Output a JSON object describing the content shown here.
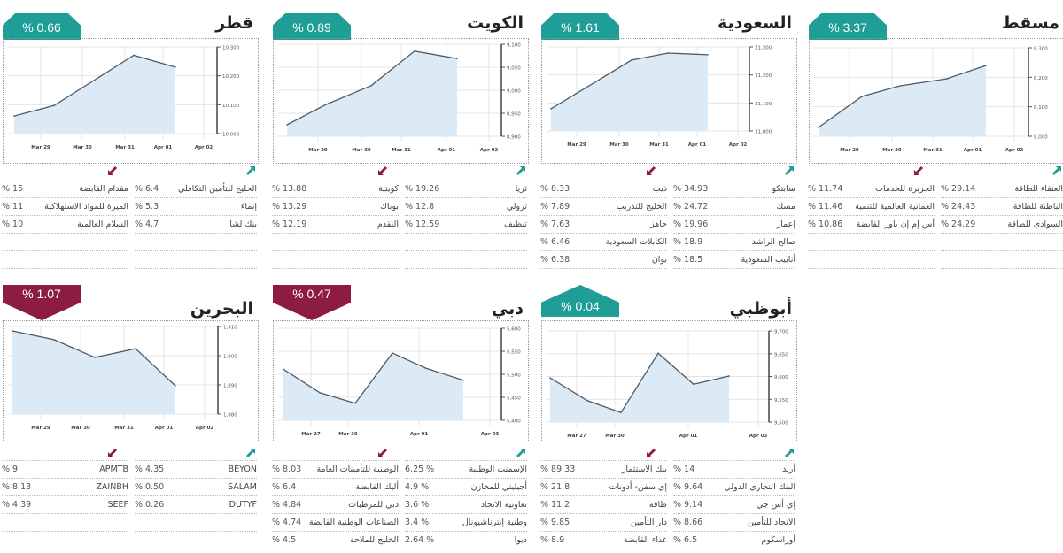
{
  "percent_sign": "%",
  "colors": {
    "gain": "#1f9e98",
    "loss": "#8c1d40",
    "area": "#dceaf6",
    "line": "#4d5b68"
  },
  "icons": {
    "gainers": "arrow-up-right-icon",
    "losers": "arrow-down-left-icon"
  },
  "markets": [
    {
      "name": "قطر",
      "change": "% 0.66",
      "direction": "up",
      "gainers": [
        {
          "name": "الخليج للتأمين التكافلي",
          "value": "% 6.4"
        },
        {
          "name": "إنماء",
          "value": "% 5.3"
        },
        {
          "name": "بنك لشا",
          "value": "% 4.7"
        }
      ],
      "losers": [
        {
          "name": "مقدام القابضة",
          "value": "% 15"
        },
        {
          "name": "الميرة للمواد الاستهلاكية",
          "value": "% 11"
        },
        {
          "name": "السلام العالمية",
          "value": "% 10"
        }
      ]
    },
    {
      "name": "الكويت",
      "change": "% 0.89",
      "direction": "up",
      "gainers": [
        {
          "name": "ثريا",
          "value": "% 19.26"
        },
        {
          "name": "ترولي",
          "value": "% 12.8"
        },
        {
          "name": "تنظيف",
          "value": "% 12.59"
        }
      ],
      "losers": [
        {
          "name": "كويتية",
          "value": "% 13.88"
        },
        {
          "name": "بوباك",
          "value": "% 13.29"
        },
        {
          "name": "التقدم",
          "value": "% 12.19"
        }
      ]
    },
    {
      "name": "السعودية",
      "change": "% 1.61",
      "direction": "up",
      "gainers": [
        {
          "name": "سابتكو",
          "value": "% 34.93"
        },
        {
          "name": "مسك",
          "value": "% 24.72"
        },
        {
          "name": "إعمار",
          "value": "% 19.96"
        },
        {
          "name": "صالح الراشد",
          "value": "% 18.9"
        },
        {
          "name": "أنابيب السعودية",
          "value": "% 18.5"
        }
      ],
      "losers": [
        {
          "name": "ذيب",
          "value": "% 8.33"
        },
        {
          "name": "الخليج للتدريب",
          "value": "% 7.89"
        },
        {
          "name": "جاهز",
          "value": "% 7.63"
        },
        {
          "name": "الكابلات السعودية",
          "value": "% 6.46"
        },
        {
          "name": "بوان",
          "value": "% 6.38"
        }
      ]
    },
    {
      "name": "مسقط",
      "change": "% 3.37",
      "direction": "up",
      "gainers": [
        {
          "name": "العنقاء للطاقة",
          "value": "% 29.14"
        },
        {
          "name": "الباطنة للطاقة",
          "value": "% 24.43"
        },
        {
          "name": "السوادي للطاقة",
          "value": "% 24.29"
        }
      ],
      "losers": [
        {
          "name": "الجزيرة للخدمات",
          "value": "% 11.74"
        },
        {
          "name": "العمانية العالمية للتنمية",
          "value": "% 11.46"
        },
        {
          "name": "أس إم إن باور القابضة",
          "value": "% 10.86"
        }
      ]
    },
    {
      "name": "البحرين",
      "change": "% 1.07",
      "direction": "down",
      "gainers": [
        {
          "name": "BEYON",
          "value": "% 4.35"
        },
        {
          "name": "SALAM",
          "value": "% 0.50"
        },
        {
          "name": "DUTYF",
          "value": "% 0.26"
        }
      ],
      "losers": [
        {
          "name": "APMTB",
          "value": "% 9"
        },
        {
          "name": "ZAINBH",
          "value": "% 8.13"
        },
        {
          "name": "SEEF",
          "value": "% 4.39"
        }
      ]
    },
    {
      "name": "دبي",
      "change": "% 0.47",
      "direction": "down",
      "gainers": [
        {
          "name": "الإسمنت الوطنية",
          "value": "6.25 %"
        },
        {
          "name": "أجيليتي للمخازن",
          "value": "4.9 %"
        },
        {
          "name": "تعاونية الاتحاد",
          "value": "3.6 %"
        },
        {
          "name": "وطنية إنترناشيونال",
          "value": "3.4 %"
        },
        {
          "name": "ديوا",
          "value": "2.64 %"
        }
      ],
      "losers": [
        {
          "name": "الوطنية للتأمينات العامة",
          "value": "% 8.03"
        },
        {
          "name": "أليك القابضة",
          "value": "% 6.4"
        },
        {
          "name": "دبي للمرطبات",
          "value": "% 4.84"
        },
        {
          "name": "الصناعات الوطنية القابضة",
          "value": "% 4.74"
        },
        {
          "name": "الخليج للملاحة",
          "value": "% 4.5"
        }
      ]
    },
    {
      "name": "أبوظبي",
      "change": "% 0.04",
      "direction": "up",
      "gainers": [
        {
          "name": "أريد",
          "value": "% 14"
        },
        {
          "name": "البنك التجاري الدولي",
          "value": "% 9.64"
        },
        {
          "name": "إي أس جي",
          "value": "% 9.14"
        },
        {
          "name": "الاتحاد للتأمين",
          "value": "% 8.66"
        },
        {
          "name": "أوراسكوم",
          "value": "% 6.5"
        }
      ],
      "losers": [
        {
          "name": "بنك الاستثمار",
          "value": "% 89.33"
        },
        {
          "name": "إي سفن- أدونات",
          "value": "% 21.8"
        },
        {
          "name": "طاقة",
          "value": "% 11.2"
        },
        {
          "name": "دار التأمين",
          "value": "% 9.85"
        },
        {
          "name": "غذاء القابضة",
          "value": "% 8.9"
        }
      ]
    }
  ],
  "chart_data": [
    {
      "type": "area",
      "market": "قطر",
      "xticks": [
        "Mar 29",
        "Mar 30",
        "Mar 31",
        "Apr 01",
        "Apr 02"
      ],
      "yticks": [
        "10,000",
        "10,100",
        "10,200",
        "10,300"
      ],
      "ylim": [
        10000,
        10300
      ],
      "values": [
        10061,
        10097,
        10271,
        10230
      ],
      "grid": true
    },
    {
      "type": "area",
      "market": "الكويت",
      "xticks": [
        "Mar 29",
        "Mar 30",
        "Mar 31",
        "Apr 01",
        "Apr 02"
      ],
      "yticks": [
        "8,900",
        "8,950",
        "9,000",
        "9,050",
        "9,100"
      ],
      "ylim": [
        8900,
        9100
      ],
      "values": [
        8925,
        8969,
        9010,
        9085,
        9069
      ],
      "grid": true
    },
    {
      "type": "area",
      "market": "السعودية",
      "xticks": [
        "Mar 29",
        "Mar 30",
        "Mar 31",
        "Apr 01",
        "Apr 02"
      ],
      "yticks": [
        "11,000",
        "11,100",
        "11,200",
        "11,300"
      ],
      "ylim": [
        11000,
        11300
      ],
      "values": [
        11079,
        11253,
        11278,
        11272
      ],
      "grid": true
    },
    {
      "type": "area",
      "market": "مسقط",
      "xticks": [
        "Mar 29",
        "Mar 30",
        "Mar 31",
        "Apr 01",
        "Apr 02"
      ],
      "yticks": [
        "8,000",
        "8,100",
        "8,200",
        "8,300"
      ],
      "ylim": [
        8000,
        8300
      ],
      "values": [
        8030,
        8135,
        8171,
        8195,
        8240
      ],
      "grid": true
    },
    {
      "type": "area",
      "market": "البحرين",
      "xticks": [
        "Mar 29",
        "Mar 30",
        "Mar 31",
        "Apr 01",
        "Apr 02"
      ],
      "yticks": [
        "1,880",
        "1,890",
        "1,900",
        "1,910"
      ],
      "ylim": [
        1880,
        1910
      ],
      "values": [
        1908.5,
        1905.5,
        1899.4,
        1902.4,
        1889.7
      ],
      "grid": true
    },
    {
      "type": "area",
      "market": "دبي",
      "xticks": [
        "Mar 27",
        "Mar 30",
        "Apr 01",
        "Apr 03"
      ],
      "yticks": [
        "5,400",
        "5,450",
        "5,500",
        "5,550",
        "5,600"
      ],
      "ylim": [
        5400,
        5600
      ],
      "values": [
        5511,
        5460,
        5437,
        5546,
        5513,
        5487
      ],
      "grid": true
    },
    {
      "type": "area",
      "market": "أبوظبي",
      "xticks": [
        "Mar 27",
        "Mar 30",
        "Apr 01",
        "Apr 03"
      ],
      "yticks": [
        "9,500",
        "9,550",
        "9,600",
        "9,650",
        "9,700"
      ],
      "ylim": [
        9500,
        9700
      ],
      "values": [
        9597,
        9547,
        9521,
        9651,
        9583,
        9601
      ],
      "grid": true
    }
  ]
}
